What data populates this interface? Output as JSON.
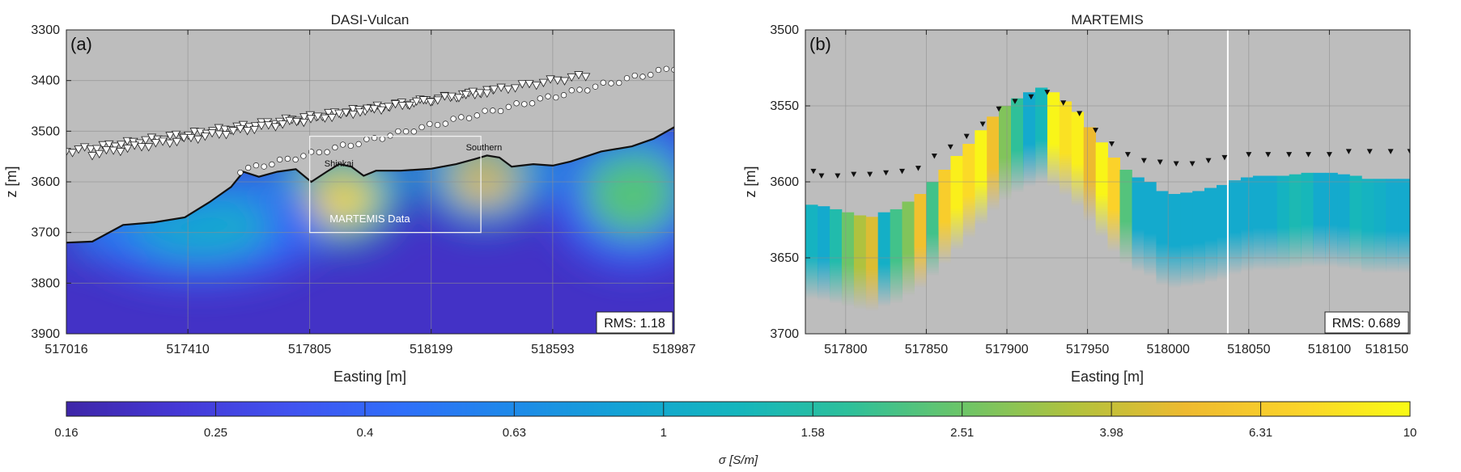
{
  "chart_data": [
    {
      "type": "heatmap",
      "panel_label": "(a)",
      "title": "DASI-Vulcan",
      "xlabel": "Easting [m]",
      "ylabel": "z [m]",
      "xlim": [
        517016,
        518987
      ],
      "ylim": [
        3900,
        3300
      ],
      "xticks": [
        "517016",
        "517410",
        "517805",
        "518199",
        "518593",
        "518987"
      ],
      "yticks": [
        "3300",
        "3400",
        "3500",
        "3600",
        "3700",
        "3800",
        "3900"
      ],
      "grid": true,
      "rms_label": "RMS: 1.18",
      "annotations": [
        {
          "text": "Shinkai",
          "x": 517900,
          "z": 3570
        },
        {
          "text": "Southern",
          "x": 518370,
          "z": 3538
        },
        {
          "text": "MARTEMIS Data",
          "x": 518000,
          "z": 3680
        }
      ],
      "martemis_box": {
        "x": [
          517805,
          518360
        ],
        "z": [
          3510,
          3700
        ]
      },
      "seafloor": [
        [
          517016,
          3720
        ],
        [
          517100,
          3718
        ],
        [
          517200,
          3685
        ],
        [
          517300,
          3680
        ],
        [
          517400,
          3670
        ],
        [
          517480,
          3640
        ],
        [
          517550,
          3610
        ],
        [
          517590,
          3580
        ],
        [
          517640,
          3590
        ],
        [
          517700,
          3580
        ],
        [
          517760,
          3575
        ],
        [
          517810,
          3600
        ],
        [
          517860,
          3580
        ],
        [
          517900,
          3565
        ],
        [
          517940,
          3570
        ],
        [
          517980,
          3588
        ],
        [
          518020,
          3578
        ],
        [
          518100,
          3578
        ],
        [
          518200,
          3574
        ],
        [
          518280,
          3565
        ],
        [
          518340,
          3555
        ],
        [
          518380,
          3548
        ],
        [
          518420,
          3552
        ],
        [
          518460,
          3570
        ],
        [
          518530,
          3565
        ],
        [
          518593,
          3568
        ],
        [
          518650,
          3560
        ],
        [
          518750,
          3540
        ],
        [
          518850,
          3530
        ],
        [
          518920,
          3515
        ],
        [
          518987,
          3492
        ]
      ],
      "sensor_tracks": [
        {
          "marker": "triangle",
          "start": [
            517016,
            3540
          ],
          "end": [
            518400,
            3420
          ]
        },
        {
          "marker": "triangle",
          "start": [
            517100,
            3545
          ],
          "end": [
            518700,
            3390
          ]
        },
        {
          "marker": "circle",
          "start": [
            517580,
            3578
          ],
          "end": [
            518987,
            3375
          ]
        }
      ],
      "conductive_anomalies": [
        {
          "x": 517900,
          "z": 3615,
          "sigma": 7.5
        },
        {
          "x": 518370,
          "z": 3575,
          "sigma": 5.5
        },
        {
          "x": 518850,
          "z": 3620,
          "sigma": 2.2
        },
        {
          "x": 517450,
          "z": 3690,
          "sigma": 1.0
        }
      ],
      "background_sigma": 0.2
    },
    {
      "type": "heatmap",
      "panel_label": "(b)",
      "title": "MARTEMIS",
      "xlabel": "Easting [m]",
      "ylabel": "z [m]",
      "xlim": [
        517775,
        518150
      ],
      "ylim": [
        3700,
        3500
      ],
      "xticks": [
        "517800",
        "517850",
        "517900",
        "517950",
        "518000",
        "518050",
        "518100",
        "518150"
      ],
      "yticks": [
        "3500",
        "3550",
        "3600",
        "3650",
        "3700"
      ],
      "grid": true,
      "rms_label": "RMS: 0.689",
      "profile_marker_x": 518037,
      "column_width": 7.5,
      "columns_x": [
        517775,
        517782.5,
        517790,
        517797.5,
        517805,
        517812.5,
        517820,
        517827.5,
        517835,
        517842.5,
        517850,
        517857.5,
        517865,
        517872.5,
        517880,
        517887.5,
        517895,
        517902.5,
        517910,
        517917.5,
        517925,
        517932.5,
        517940,
        517947.5,
        517955,
        517962.5,
        517970,
        517977.5,
        517985,
        517992.5,
        518000,
        518007.5,
        518015,
        518022.5,
        518030,
        518037.5,
        518045,
        518052.5,
        518060,
        518067.5,
        518075,
        518082.5,
        518090,
        518097.5,
        518105,
        518112.5,
        518120,
        518127.5,
        518135,
        518142.5
      ],
      "columns_top": [
        3615,
        3616,
        3618,
        3620,
        3622,
        3623,
        3620,
        3618,
        3613,
        3608,
        3600,
        3592,
        3583,
        3575,
        3566,
        3557,
        3550,
        3545,
        3541,
        3538,
        3541,
        3547,
        3554,
        3564,
        3574,
        3584,
        3592,
        3597,
        3600,
        3606,
        3608,
        3607,
        3606,
        3604,
        3602,
        3599,
        3597,
        3596,
        3596,
        3596,
        3595,
        3594,
        3594,
        3594,
        3595,
        3596,
        3598,
        3598,
        3598,
        3598
      ],
      "columns_sigma": [
        1.2,
        1.0,
        1.5,
        2.5,
        3.5,
        4.5,
        1.1,
        2.0,
        2.8,
        5.5,
        2.0,
        6.5,
        9.0,
        7.5,
        9.5,
        5.5,
        2.8,
        1.8,
        1.0,
        1.3,
        9.5,
        8.0,
        9.0,
        5.0,
        9.5,
        7.0,
        2.2,
        1.0,
        1.0,
        1.0,
        1.0,
        1.0,
        1.0,
        1.0,
        1.0,
        1.0,
        1.0,
        1.0,
        1.0,
        1.2,
        1.4,
        1.3,
        1.0,
        1.0,
        1.0,
        1.3,
        1.2,
        1.1,
        1.0,
        1.0
      ],
      "sensor_positions": [
        [
          517780,
          3593
        ],
        [
          517785,
          3596
        ],
        [
          517795,
          3596
        ],
        [
          517805,
          3595
        ],
        [
          517815,
          3595
        ],
        [
          517825,
          3594
        ],
        [
          517835,
          3593
        ],
        [
          517845,
          3591
        ],
        [
          517855,
          3583
        ],
        [
          517865,
          3577
        ],
        [
          517875,
          3570
        ],
        [
          517885,
          3562
        ],
        [
          517895,
          3552
        ],
        [
          517905,
          3547
        ],
        [
          517915,
          3544
        ],
        [
          517925,
          3541
        ],
        [
          517935,
          3548
        ],
        [
          517945,
          3555
        ],
        [
          517955,
          3566
        ],
        [
          517965,
          3575
        ],
        [
          517975,
          3582
        ],
        [
          517985,
          3586
        ],
        [
          517995,
          3587
        ],
        [
          518005,
          3588
        ],
        [
          518015,
          3588
        ],
        [
          518025,
          3586
        ],
        [
          518035,
          3584
        ],
        [
          518050,
          3582
        ],
        [
          518062,
          3582
        ],
        [
          518075,
          3582
        ],
        [
          518087,
          3582
        ],
        [
          518100,
          3582
        ],
        [
          518112,
          3580
        ],
        [
          518125,
          3580
        ],
        [
          518138,
          3580
        ],
        [
          518150,
          3580
        ]
      ]
    }
  ],
  "colorbar": {
    "label": "σ [S/m]",
    "ticks": [
      "0.16",
      "0.25",
      "0.4",
      "0.63",
      "1",
      "1.58",
      "2.51",
      "3.98",
      "6.31",
      "10"
    ],
    "scale": "log",
    "min": 0.16,
    "max": 10,
    "colormap": [
      "#3e26a8",
      "#4538d6",
      "#4153f0",
      "#2f6ffa",
      "#1e8ae9",
      "#13a4d4",
      "#15b6bd",
      "#2ec09a",
      "#6cc568",
      "#b2c23d",
      "#eeba30",
      "#fbd32a",
      "#f9fb15"
    ]
  },
  "colors": {
    "background": "#bdbdbd",
    "seafloor_line": "#111111",
    "box": "#f0f0f0",
    "sensor_b": "#111111"
  }
}
